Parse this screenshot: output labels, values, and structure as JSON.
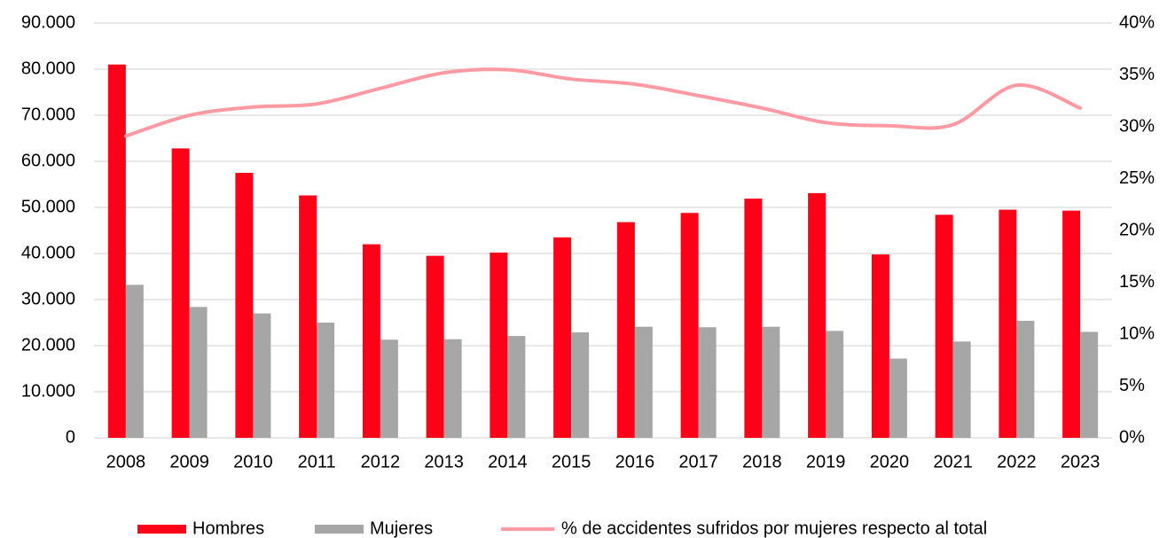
{
  "chart_data": {
    "type": "bar_line",
    "categories": [
      "2008",
      "2009",
      "2010",
      "2011",
      "2012",
      "2013",
      "2014",
      "2015",
      "2016",
      "2017",
      "2018",
      "2019",
      "2020",
      "2021",
      "2022",
      "2023"
    ],
    "series": [
      {
        "name": "Hombres",
        "color": "#ff0019",
        "values": [
          81000,
          62800,
          57500,
          52600,
          42000,
          39500,
          40200,
          43500,
          46800,
          48800,
          51900,
          53100,
          39800,
          48400,
          49500,
          49300
        ]
      },
      {
        "name": "Mujeres",
        "color": "#a6a6a6",
        "values": [
          33200,
          28400,
          27000,
          25000,
          21300,
          21400,
          22100,
          22900,
          24100,
          24000,
          24100,
          23200,
          17200,
          20900,
          25400,
          23000
        ]
      },
      {
        "name": "% de accidentes sufridos por mujeres respecto al total",
        "color": "#ff9aa2",
        "axis": "y2",
        "kind": "line",
        "values": [
          29.1,
          31.1,
          31.9,
          32.2,
          33.7,
          35.2,
          35.5,
          34.6,
          34.1,
          33.0,
          31.8,
          30.4,
          30.1,
          30.2,
          34.0,
          31.8
        ]
      }
    ],
    "ylim": [
      0,
      90000
    ],
    "yticks": [
      0,
      {
        "value": 10000,
        "label": "10.000"
      },
      {
        "value": 20000,
        "label": "20.000"
      },
      {
        "value": 30000,
        "label": "30.000"
      },
      {
        "value": 40000,
        "label": "40.000"
      },
      {
        "value": 50000,
        "label": "50.000"
      },
      {
        "value": 60000,
        "label": "60.000"
      },
      {
        "value": 70000,
        "label": "70.000"
      },
      {
        "value": 80000,
        "label": "80.000"
      },
      {
        "value": 90000,
        "label": "90.000"
      }
    ],
    "y2lim": [
      0,
      40
    ],
    "y2ticks": [
      {
        "value": 0,
        "label": "0%"
      },
      {
        "value": 5,
        "label": "5%"
      },
      {
        "value": 10,
        "label": "10%"
      },
      {
        "value": 15,
        "label": "15%"
      },
      {
        "value": 20,
        "label": "20%"
      },
      {
        "value": 25,
        "label": "25%"
      },
      {
        "value": 30,
        "label": "30%"
      },
      {
        "value": 35,
        "label": "35%"
      },
      {
        "value": 40,
        "label": "40%"
      }
    ],
    "grid": true,
    "legend": "bottom"
  }
}
